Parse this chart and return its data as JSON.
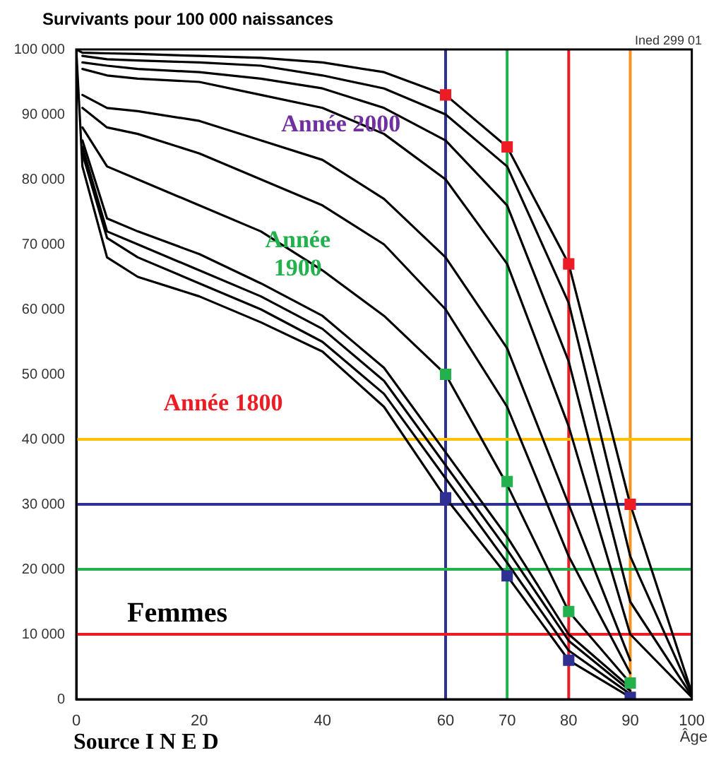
{
  "chart_data": {
    "type": "line",
    "title": "Survivants pour 100 000 naissances",
    "xlabel": "Âge",
    "x": [
      0,
      1,
      5,
      10,
      20,
      30,
      40,
      50,
      60,
      70,
      80,
      90,
      100
    ],
    "xlim": [
      0,
      100
    ],
    "xticks": [
      0,
      20,
      40,
      60,
      70,
      80,
      90,
      100
    ],
    "ylim": [
      0,
      100000
    ],
    "yticks": [
      {
        "value": 0,
        "label": "0"
      },
      {
        "value": 10000,
        "label": "10 000"
      },
      {
        "value": 20000,
        "label": "20 000"
      },
      {
        "value": 30000,
        "label": "30 000"
      },
      {
        "value": 40000,
        "label": "40 000"
      },
      {
        "value": 50000,
        "label": "50 000"
      },
      {
        "value": 60000,
        "label": "60 000"
      },
      {
        "value": 70000,
        "label": "70 000"
      },
      {
        "value": 80000,
        "label": "80 000"
      },
      {
        "value": 90000,
        "label": "90 000"
      },
      {
        "value": 100000,
        "label": "100 000"
      }
    ],
    "grid": false,
    "legend": false,
    "line_style": "solid",
    "series": [
      {
        "color": "#000000",
        "marker": "none",
        "values": [
          100000,
          82000,
          68000,
          65000,
          62000,
          58000,
          53500,
          45000,
          31000,
          19000,
          6000,
          300,
          null
        ]
      },
      {
        "color": "#000000",
        "marker": "none",
        "values": [
          null,
          84000,
          71000,
          68000,
          64000,
          60000,
          55000,
          47000,
          34000,
          21000,
          7500,
          800,
          null
        ]
      },
      {
        "color": "#000000",
        "marker": "none",
        "values": [
          null,
          85000,
          72000,
          70000,
          66000,
          62000,
          57000,
          49000,
          36000,
          23000,
          9000,
          1300,
          null
        ]
      },
      {
        "color": "#000000",
        "marker": "none",
        "values": [
          null,
          86000,
          74000,
          72000,
          68500,
          64000,
          59000,
          51000,
          38000,
          25000,
          10000,
          1800,
          null
        ]
      },
      {
        "color": "#000000",
        "marker": "none",
        "values": [
          null,
          88000,
          82000,
          80000,
          76000,
          72000,
          66000,
          59000,
          50000,
          33000,
          13500,
          2500,
          null
        ]
      },
      {
        "color": "#000000",
        "marker": "none",
        "values": [
          null,
          91000,
          88000,
          87000,
          84000,
          80000,
          76000,
          70000,
          60000,
          45000,
          22000,
          4000,
          null
        ]
      },
      {
        "color": "#000000",
        "marker": "none",
        "values": [
          null,
          93000,
          91000,
          90500,
          89000,
          86000,
          83000,
          77000,
          68000,
          54000,
          30000,
          6000,
          null
        ]
      },
      {
        "color": "#000000",
        "marker": "none",
        "values": [
          null,
          97000,
          96000,
          95500,
          95000,
          93000,
          91000,
          87000,
          80000,
          67000,
          42000,
          10000,
          300
        ]
      },
      {
        "color": "#000000",
        "marker": "none",
        "values": [
          null,
          98000,
          97500,
          97000,
          96500,
          95500,
          94000,
          91000,
          86000,
          76000,
          52000,
          15000,
          500
        ]
      },
      {
        "color": "#000000",
        "marker": "none",
        "values": [
          null,
          99000,
          98500,
          98300,
          98000,
          97500,
          96000,
          94000,
          90000,
          82000,
          61000,
          22000,
          800
        ]
      },
      {
        "color": "#000000",
        "marker": "none",
        "values": [
          100000,
          99500,
          99400,
          99300,
          99000,
          98700,
          98000,
          96500,
          93000,
          85000,
          67000,
          30000,
          1000
        ]
      },
      {
        "type": "scatter",
        "color": "#ed1c24",
        "marker": "square",
        "x": [
          60,
          70,
          80,
          90
        ],
        "values": [
          93000,
          85000,
          67000,
          30000
        ]
      },
      {
        "type": "scatter",
        "color": "#22b14c",
        "marker": "square",
        "x": [
          60,
          70,
          80,
          90
        ],
        "values": [
          50000,
          33500,
          13500,
          2500
        ]
      },
      {
        "type": "scatter",
        "color": "#2e3192",
        "marker": "square",
        "x": [
          60,
          70,
          80,
          90
        ],
        "values": [
          31000,
          19000,
          6000,
          300
        ]
      }
    ],
    "ref_lines": [
      {
        "axis": "x",
        "value": 60,
        "color": "#2e3192"
      },
      {
        "axis": "x",
        "value": 70,
        "color": "#22b14c"
      },
      {
        "axis": "x",
        "value": 80,
        "color": "#ed1c24"
      },
      {
        "axis": "x",
        "value": 90,
        "color": "#f7941d"
      },
      {
        "axis": "y",
        "value": 40000,
        "color": "#ffc000"
      },
      {
        "axis": "y",
        "value": 30000,
        "color": "#2e3192"
      },
      {
        "axis": "y",
        "value": 20000,
        "color": "#22b14c"
      },
      {
        "axis": "y",
        "value": 10000,
        "color": "#ed1c24"
      }
    ],
    "annotations": [
      {
        "text": "Année 2000",
        "x": 43,
        "y": 88500
      },
      {
        "text": "Année 1900",
        "x": 36,
        "y": 68500
      },
      "Année 1800",
      "Femmes",
      "Source I N E D",
      "Ined 299 01"
    ]
  }
}
